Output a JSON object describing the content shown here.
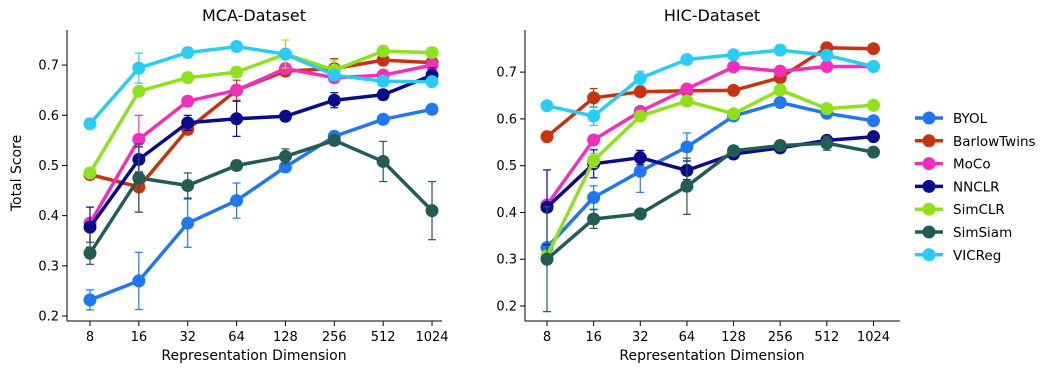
{
  "legend": [
    {
      "name": "BYOL",
      "color": "#1f77f4"
    },
    {
      "name": "BarlowTwins",
      "color": "#c8320e"
    },
    {
      "name": "MoCo",
      "color": "#f22fbd"
    },
    {
      "name": "NNCLR",
      "color": "#0a0a8c"
    },
    {
      "name": "SimCLR",
      "color": "#8ee21a"
    },
    {
      "name": "SimSiam",
      "color": "#215c55"
    },
    {
      "name": "VICReg",
      "color": "#28cdf5"
    }
  ],
  "chart_data": [
    {
      "type": "line",
      "title": "MCA-Dataset",
      "xlabel": "Representation Dimension",
      "ylabel": "Total Score",
      "categories": [
        "8",
        "16",
        "32",
        "64",
        "128",
        "256",
        "512",
        "1024"
      ],
      "ylim": [
        0.19,
        0.77
      ],
      "yticks": [
        0.2,
        0.3,
        0.4,
        0.5,
        0.6,
        0.7
      ],
      "ytick_labels": [
        "0.2",
        "0.3",
        "0.4",
        "0.5",
        "0.6",
        "0.7"
      ],
      "grid": false,
      "error_bars": true,
      "series": [
        {
          "name": "BYOL",
          "color": "#1f77f4",
          "values": [
            0.232,
            0.27,
            0.385,
            0.43,
            0.497,
            0.558,
            0.592,
            0.612
          ],
          "errors": [
            0.02,
            0.057,
            0.048,
            0.035,
            0.01,
            0.01,
            0.01,
            0.01
          ]
        },
        {
          "name": "BarlowTwins",
          "color": "#c8320e",
          "values": [
            0.482,
            0.457,
            0.572,
            0.65,
            0.688,
            0.693,
            0.71,
            0.705
          ],
          "errors": [
            0.01,
            0.05,
            0.01,
            0.02,
            0.01,
            0.02,
            0.01,
            0.01
          ]
        },
        {
          "name": "MoCo",
          "color": "#f22fbd",
          "values": [
            0.385,
            0.552,
            0.628,
            0.65,
            0.693,
            0.675,
            0.68,
            0.7
          ],
          "errors": [
            0.01,
            0.048,
            0.01,
            0.01,
            0.01,
            0.01,
            0.01,
            0.01
          ]
        },
        {
          "name": "NNCLR",
          "color": "#0a0a8c",
          "values": [
            0.377,
            0.512,
            0.585,
            0.593,
            0.598,
            0.63,
            0.641,
            0.68
          ],
          "errors": [
            0.04,
            0.025,
            0.015,
            0.035,
            0.01,
            0.015,
            0.01,
            0.015
          ]
        },
        {
          "name": "SimCLR",
          "color": "#8ee21a",
          "values": [
            0.485,
            0.648,
            0.675,
            0.686,
            0.722,
            0.69,
            0.728,
            0.725
          ],
          "errors": [
            0.01,
            0.01,
            0.01,
            0.01,
            0.028,
            0.02,
            0.01,
            0.01
          ]
        },
        {
          "name": "SimSiam",
          "color": "#215c55",
          "values": [
            0.325,
            0.475,
            0.46,
            0.5,
            0.518,
            0.55,
            0.508,
            0.41
          ],
          "errors": [
            0.022,
            0.068,
            0.025,
            0.01,
            0.015,
            0.01,
            0.04,
            0.058
          ]
        },
        {
          "name": "VICReg",
          "color": "#28cdf5",
          "values": [
            0.583,
            0.694,
            0.725,
            0.737,
            0.722,
            0.68,
            0.668,
            0.667
          ],
          "errors": [
            0.01,
            0.03,
            0.01,
            0.01,
            0.01,
            0.01,
            0.01,
            0.01
          ]
        }
      ]
    },
    {
      "type": "line",
      "title": "HIC-Dataset",
      "xlabel": "Representation Dimension",
      "ylabel": "",
      "categories": [
        "8",
        "16",
        "32",
        "64",
        "128",
        "256",
        "512",
        "1024"
      ],
      "ylim": [
        0.168,
        0.79
      ],
      "yticks": [
        0.2,
        0.3,
        0.4,
        0.5,
        0.6,
        0.7
      ],
      "ytick_labels": [
        "0.2",
        "0.3",
        "0.4",
        "0.5",
        "0.6",
        "0.7"
      ],
      "grid": false,
      "error_bars": true,
      "series": [
        {
          "name": "BYOL",
          "color": "#1f77f4",
          "values": [
            0.325,
            0.432,
            0.488,
            0.54,
            0.606,
            0.635,
            0.612,
            0.596
          ],
          "errors": [
            0.01,
            0.025,
            0.045,
            0.03,
            0.01,
            0.01,
            0.01,
            0.01
          ]
        },
        {
          "name": "BarlowTwins",
          "color": "#c8320e",
          "values": [
            0.562,
            0.645,
            0.658,
            0.66,
            0.661,
            0.688,
            0.752,
            0.75
          ],
          "errors": [
            0.01,
            0.02,
            0.01,
            0.01,
            0.01,
            0.01,
            0.01,
            0.01
          ]
        },
        {
          "name": "MoCo",
          "color": "#f22fbd",
          "values": [
            0.416,
            0.555,
            0.616,
            0.664,
            0.711,
            0.702,
            0.712,
            0.712
          ],
          "errors": [
            0.01,
            0.01,
            0.01,
            0.01,
            0.01,
            0.01,
            0.01,
            0.01
          ]
        },
        {
          "name": "NNCLR",
          "color": "#0a0a8c",
          "values": [
            0.411,
            0.504,
            0.517,
            0.49,
            0.525,
            0.538,
            0.554,
            0.562
          ],
          "errors": [
            0.08,
            0.03,
            0.015,
            0.02,
            0.01,
            0.01,
            0.01,
            0.01
          ]
        },
        {
          "name": "SimCLR",
          "color": "#8ee21a",
          "values": [
            0.307,
            0.511,
            0.606,
            0.638,
            0.611,
            0.662,
            0.622,
            0.629
          ],
          "errors": [
            0.01,
            0.015,
            0.01,
            0.01,
            0.01,
            0.01,
            0.01,
            0.01
          ]
        },
        {
          "name": "SimSiam",
          "color": "#215c55",
          "values": [
            0.3,
            0.386,
            0.397,
            0.456,
            0.532,
            0.543,
            0.548,
            0.529
          ],
          "errors": [
            0.112,
            0.02,
            0.01,
            0.06,
            0.01,
            0.01,
            0.015,
            0.01
          ]
        },
        {
          "name": "VICReg",
          "color": "#28cdf5",
          "values": [
            0.628,
            0.606,
            0.687,
            0.727,
            0.737,
            0.747,
            0.736,
            0.712
          ],
          "errors": [
            0.01,
            0.02,
            0.015,
            0.01,
            0.01,
            0.01,
            0.01,
            0.01
          ]
        }
      ]
    }
  ]
}
